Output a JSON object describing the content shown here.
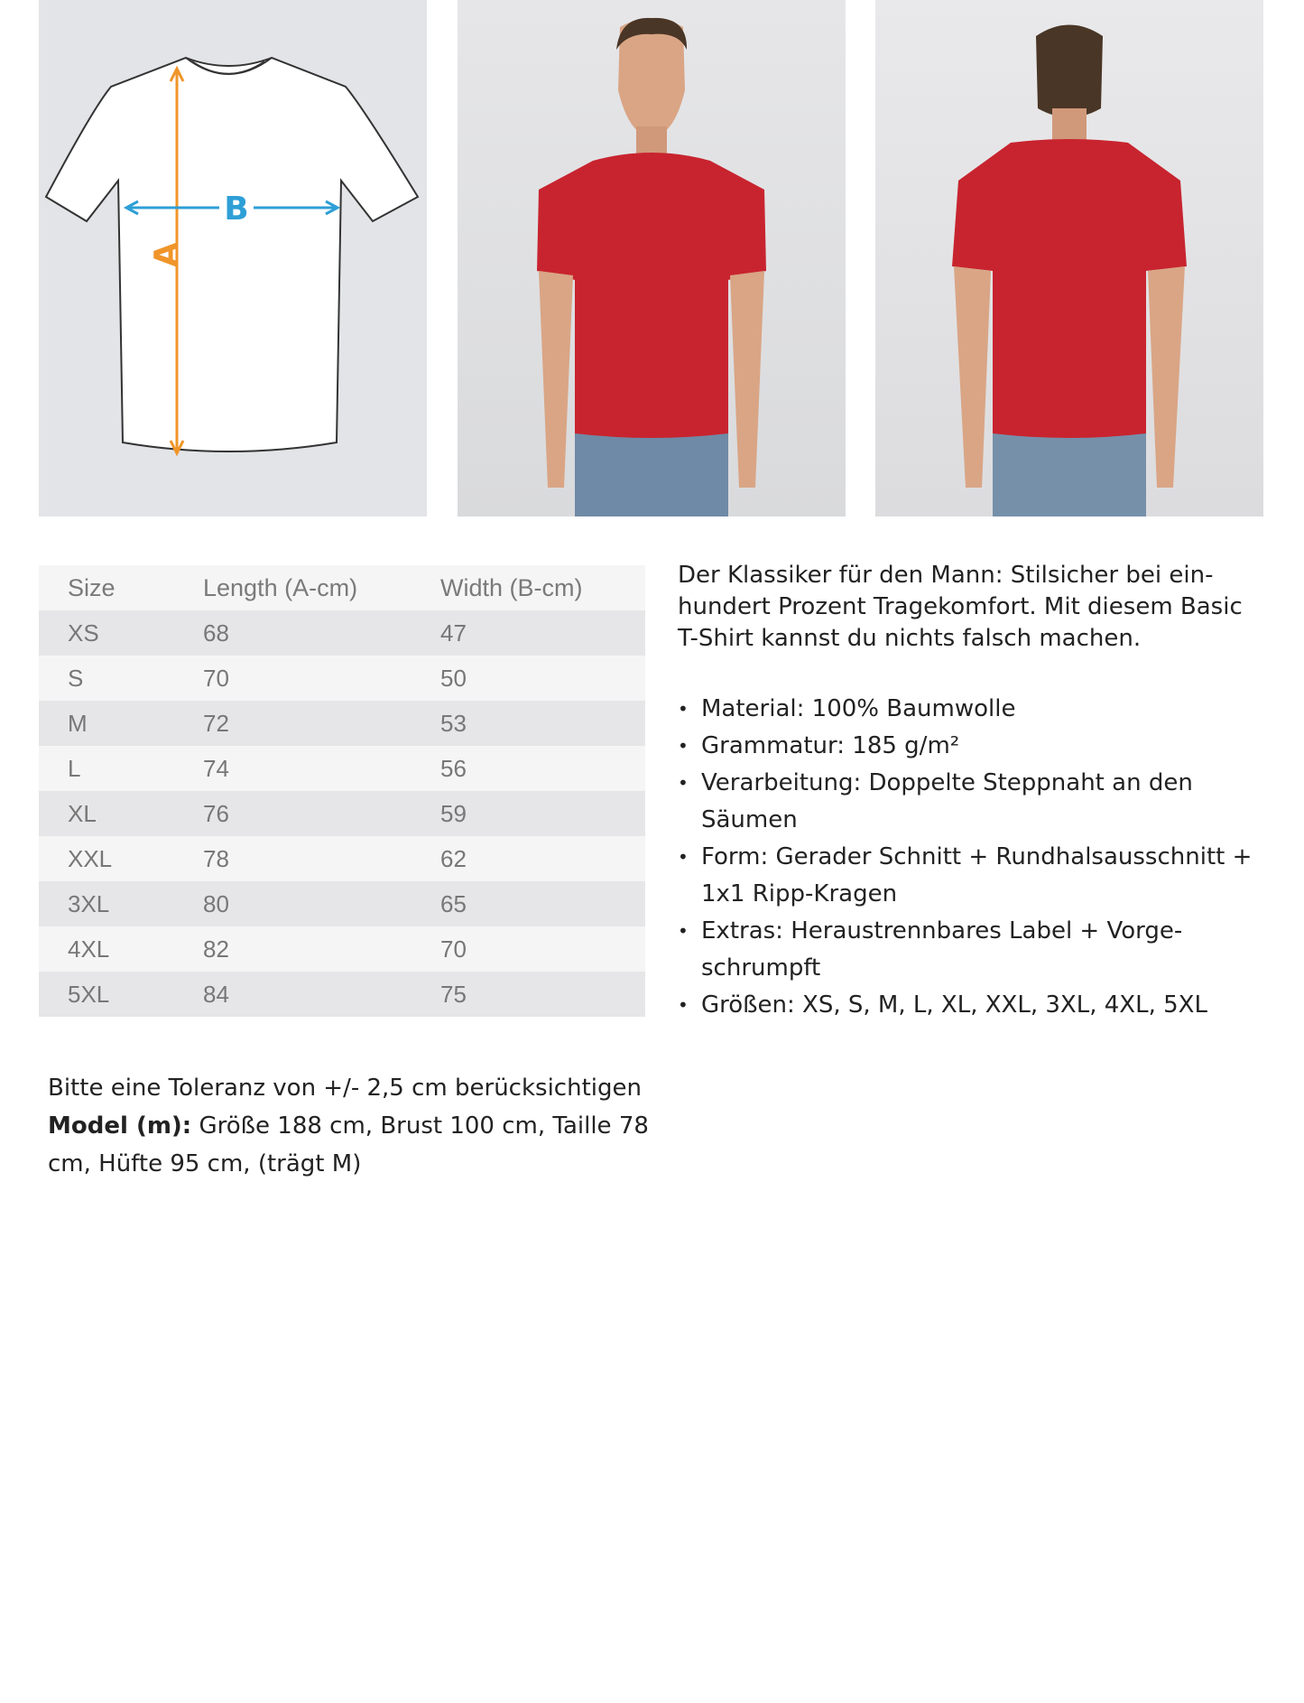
{
  "diagram": {
    "label_a": "A",
    "label_b": "B",
    "arrow_a_color": "#f0952a",
    "arrow_b_color": "#2e9fd6"
  },
  "photos": {
    "front": "model-front-red-tshirt",
    "back": "model-back-red-tshirt",
    "shirt_color": "#c8242f"
  },
  "size_table": {
    "headers": [
      "Size",
      "Length (A-cm)",
      "Width (B-cm)"
    ],
    "rows": [
      [
        "XS",
        "68",
        "47"
      ],
      [
        "S",
        "70",
        "50"
      ],
      [
        "M",
        "72",
        "53"
      ],
      [
        "L",
        "74",
        "56"
      ],
      [
        "XL",
        "76",
        "59"
      ],
      [
        "XXL",
        "78",
        "62"
      ],
      [
        "3XL",
        "80",
        "65"
      ],
      [
        "4XL",
        "82",
        "70"
      ],
      [
        "5XL",
        "84",
        "75"
      ]
    ]
  },
  "description": {
    "intro": "Der Klassiker für den Mann: Stilsicher bei ein­hundert Prozent Tragekomfort. Mit diesem Basic T-Shirt kannst du nichts falsch machen.",
    "bullets": [
      "Material: 100% Baumwolle",
      "Grammatur: 185 g/m²",
      "Verarbeitung: Doppelte Steppnaht an den Säumen",
      "Form: Gerader Schnitt + Rundhalsausschnitt + 1x1 Ripp-Kragen",
      "Extras: Heraustrennbares Label + Vorge­schrumpft",
      "Größen: XS, S, M, L, XL, XXL, 3XL, 4XL, 5XL"
    ]
  },
  "notes": {
    "tolerance": "Bitte eine Toleranz von +/- 2,5 cm berücksichtigen",
    "model_label": "Model (m):",
    "model_text": " Größe 188 cm, Brust 100 cm, Taille 78 cm, Hüfte 95 cm, (trägt M)"
  }
}
